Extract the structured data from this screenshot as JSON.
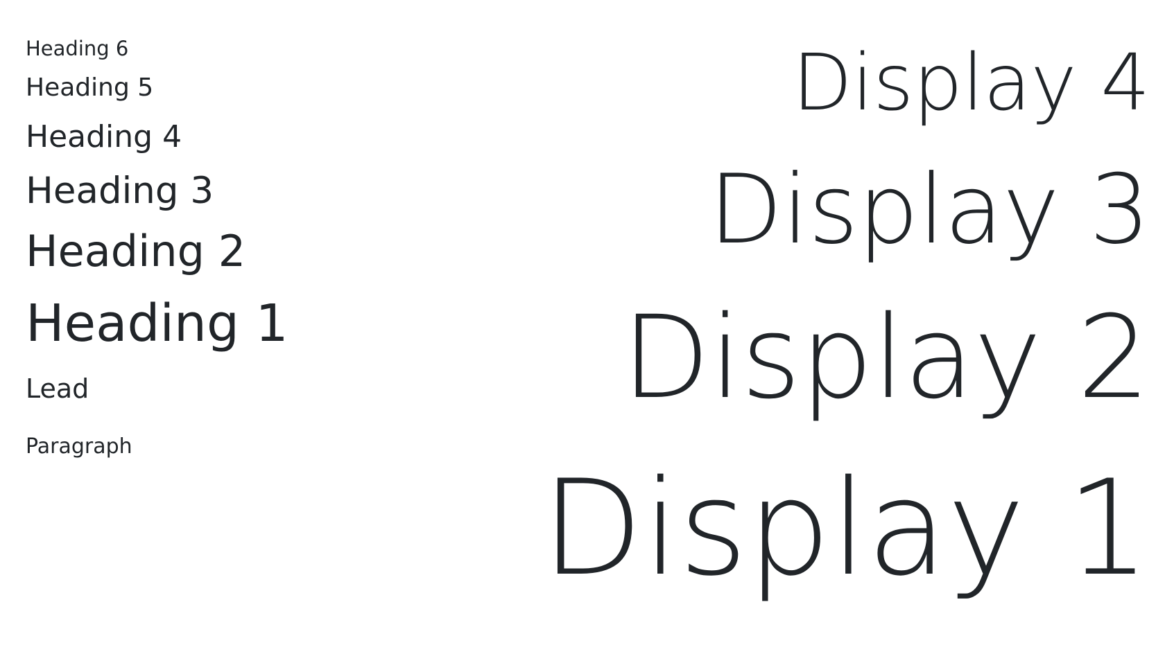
{
  "headings": {
    "h6": "Heading 6",
    "h5": "Heading 5",
    "h4": "Heading 4",
    "h3": "Heading 3",
    "h2": "Heading 2",
    "h1": "Heading 1",
    "lead": "Lead",
    "paragraph": "Paragraph"
  },
  "displays": {
    "d4": "Display 4",
    "d3": "Display 3",
    "d2": "Display 2",
    "d1": "Display 1"
  },
  "colors": {
    "text": "#212529",
    "background": "#ffffff"
  }
}
